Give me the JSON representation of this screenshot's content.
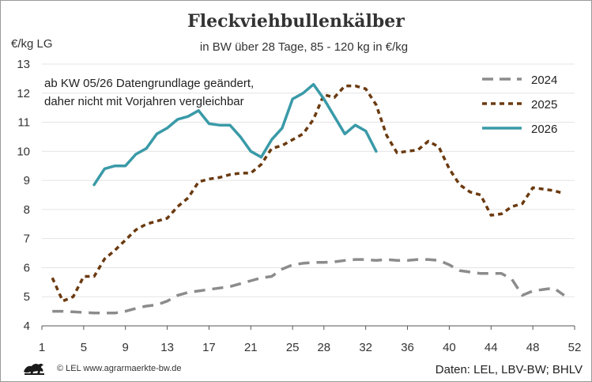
{
  "chart_data": {
    "type": "line",
    "title": "Fleckviehbullenkälber",
    "subtitle": "in BW über 28 Tage, 85 - 120 kg in €/kg",
    "ylabel": "€/kg LG",
    "xlabel": "",
    "xlim": [
      1,
      52
    ],
    "ylim": [
      4,
      13
    ],
    "x_ticks": [
      1,
      5,
      9,
      13,
      17,
      21,
      25,
      28,
      32,
      36,
      40,
      44,
      48,
      52
    ],
    "y_ticks": [
      4,
      5,
      6,
      7,
      8,
      9,
      10,
      11,
      12,
      13
    ],
    "grid": "horizontal",
    "legend_position": "top-right",
    "annotation_lines": [
      "ab KW 05/26 Datengrundlage geändert,",
      "daher nicht mit Vorjahren vergleichbar"
    ],
    "series": [
      {
        "name": "2024",
        "color": "#8c8c8c",
        "dash": "long-dash",
        "x": [
          2,
          3,
          4,
          5,
          6,
          7,
          8,
          9,
          10,
          11,
          12,
          13,
          14,
          15,
          16,
          17,
          18,
          19,
          20,
          21,
          22,
          23,
          24,
          25,
          26,
          27,
          28,
          29,
          30,
          31,
          32,
          33,
          34,
          35,
          36,
          37,
          38,
          39,
          40,
          41,
          42,
          43,
          44,
          45,
          46,
          47,
          48,
          49,
          50,
          51
        ],
        "values": [
          4.5,
          4.5,
          4.48,
          4.46,
          4.44,
          4.44,
          4.44,
          4.5,
          4.6,
          4.68,
          4.72,
          4.85,
          5.05,
          5.15,
          5.2,
          5.25,
          5.3,
          5.35,
          5.45,
          5.55,
          5.65,
          5.7,
          5.95,
          6.1,
          6.15,
          6.18,
          6.18,
          6.2,
          6.25,
          6.28,
          6.28,
          6.25,
          6.28,
          6.25,
          6.25,
          6.28,
          6.28,
          6.25,
          6.1,
          5.9,
          5.85,
          5.8,
          5.8,
          5.8,
          5.6,
          5.05,
          5.2,
          5.25,
          5.3,
          5.05
        ]
      },
      {
        "name": "2025",
        "color": "#6b3a10",
        "dash": "short-dash",
        "x": [
          2,
          3,
          4,
          5,
          6,
          7,
          8,
          9,
          10,
          11,
          12,
          13,
          14,
          15,
          16,
          17,
          18,
          19,
          20,
          21,
          22,
          23,
          24,
          25,
          26,
          27,
          28,
          29,
          30,
          31,
          32,
          33,
          34,
          35,
          36,
          37,
          38,
          39,
          40,
          41,
          42,
          43,
          44,
          45,
          46,
          47,
          48,
          49,
          50,
          51
        ],
        "values": [
          5.65,
          4.85,
          5.0,
          5.7,
          5.7,
          6.3,
          6.6,
          6.95,
          7.3,
          7.5,
          7.6,
          7.7,
          8.1,
          8.4,
          8.95,
          9.05,
          9.1,
          9.2,
          9.25,
          9.25,
          9.55,
          10.1,
          10.2,
          10.4,
          10.6,
          11.1,
          11.95,
          11.85,
          12.25,
          12.25,
          12.15,
          11.6,
          10.55,
          9.95,
          10.0,
          10.05,
          10.35,
          10.15,
          9.4,
          8.85,
          8.6,
          8.5,
          7.8,
          7.85,
          8.1,
          8.2,
          8.75,
          8.7,
          8.65,
          8.55
        ]
      },
      {
        "name": "2026",
        "color": "#3a9aa8",
        "dash": "solid",
        "x": [
          6,
          7,
          8,
          9,
          10,
          11,
          12,
          13,
          14,
          15,
          16,
          17,
          18,
          19,
          20,
          21,
          22,
          23,
          24,
          25,
          26,
          27,
          28,
          29,
          30,
          31,
          32,
          33
        ],
        "values": [
          8.85,
          9.4,
          9.5,
          9.5,
          9.9,
          10.1,
          10.6,
          10.8,
          11.1,
          11.2,
          11.4,
          10.95,
          10.9,
          10.9,
          10.5,
          10.0,
          9.8,
          10.4,
          10.8,
          11.8,
          12.0,
          12.3,
          11.8,
          11.2,
          10.6,
          10.9,
          10.7,
          10.0
        ]
      }
    ]
  },
  "footer": {
    "source_left": "© LEL www.agrarmaerkte-bw.de",
    "source_right": "Daten: LEL, LBV-BW; BHLV"
  },
  "logo": {
    "name": "lion-icon",
    "color": "#1a1a1a"
  }
}
